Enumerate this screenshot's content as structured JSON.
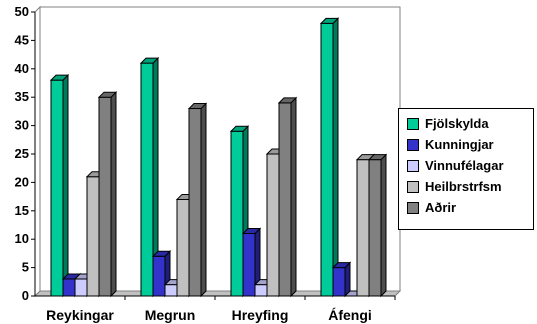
{
  "chart_data": {
    "type": "bar",
    "categories": [
      "Reykingar",
      "Megrun",
      "Hreyfing",
      "Áfengi"
    ],
    "series": [
      {
        "name": "Fjölskylda",
        "color": "#00CC99",
        "values": [
          38,
          41,
          29,
          48
        ]
      },
      {
        "name": "Kunningjar",
        "color": "#3333CC",
        "values": [
          3,
          7,
          11,
          5
        ]
      },
      {
        "name": "Vinnufélagar",
        "color": "#CCCCFF",
        "values": [
          3,
          2,
          2,
          0
        ]
      },
      {
        "name": "Heilbrstrfsm",
        "color": "#C0C0C0",
        "values": [
          21,
          17,
          25,
          24
        ]
      },
      {
        "name": "Aðrir",
        "color": "#808080",
        "values": [
          35,
          33,
          34,
          24
        ]
      }
    ],
    "ylim": [
      0,
      50
    ],
    "yticks": [
      "0",
      "5",
      "10",
      "15",
      "20",
      "25",
      "30",
      "35",
      "40",
      "45",
      "50"
    ],
    "grid": false,
    "legend_position": "right",
    "style": "3d-clustered-column"
  }
}
